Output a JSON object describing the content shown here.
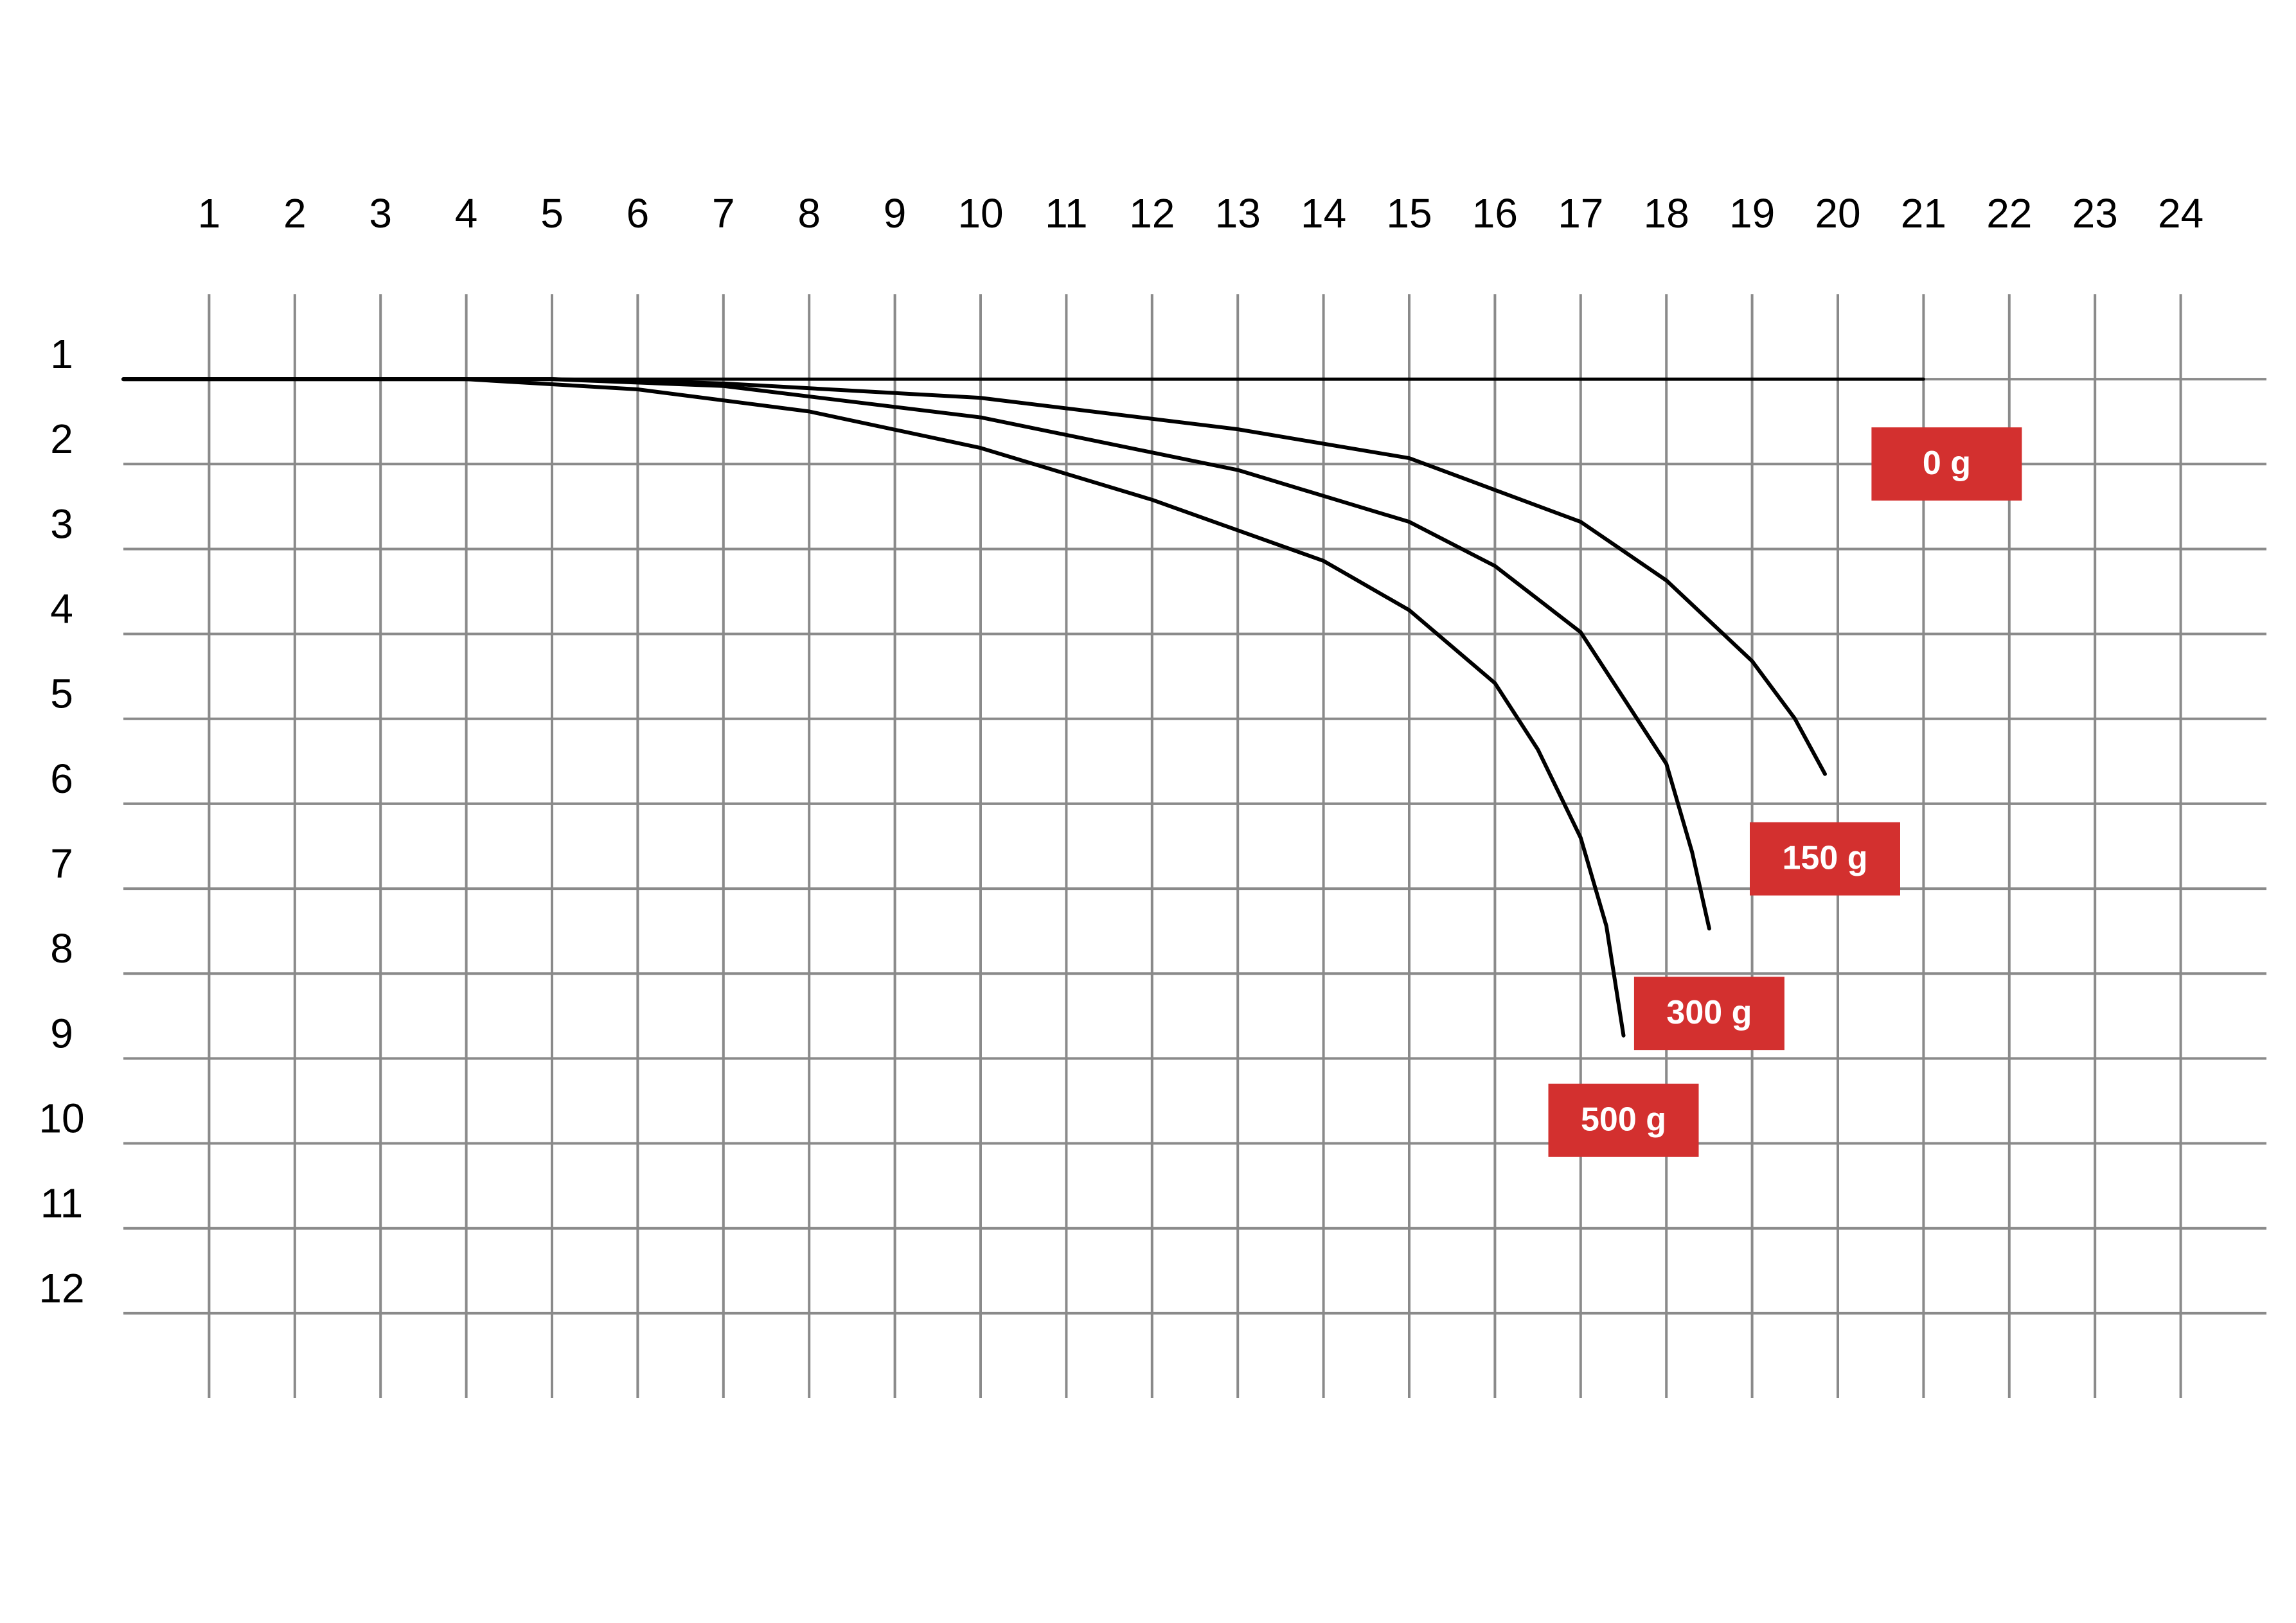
{
  "chart_data": {
    "type": "line",
    "y_inverted": true,
    "grid": true,
    "label_color": "#d3302f",
    "xlim": [
      0,
      25
    ],
    "ylim": [
      0,
      13
    ],
    "xticks": [
      1,
      2,
      3,
      4,
      5,
      6,
      7,
      8,
      9,
      10,
      11,
      12,
      13,
      14,
      15,
      16,
      17,
      18,
      19,
      20,
      21,
      22,
      23,
      24
    ],
    "yticks": [
      1,
      2,
      3,
      4,
      5,
      6,
      7,
      8,
      9,
      10,
      11,
      12
    ],
    "series": [
      {
        "name": "0 g",
        "color": "#000000",
        "x": [
          0,
          5,
          10,
          15,
          21
        ],
        "values": [
          1,
          1,
          1,
          1,
          1
        ]
      },
      {
        "name": "150 g",
        "color": "#000000",
        "x": [
          0,
          5,
          7,
          10,
          13,
          15,
          17,
          18,
          19,
          19.5,
          19.85
        ],
        "values": [
          1,
          1,
          1.05,
          1.22,
          1.59,
          1.93,
          2.68,
          3.37,
          4.32,
          5.0,
          5.65
        ]
      },
      {
        "name": "300 g",
        "color": "#000000",
        "x": [
          0,
          5,
          7,
          10,
          13,
          15,
          16,
          17,
          18,
          18.3,
          18.5
        ],
        "values": [
          1,
          1,
          1.08,
          1.45,
          2.07,
          2.68,
          3.2,
          3.98,
          5.53,
          6.57,
          7.47
        ]
      },
      {
        "name": "500 g",
        "color": "#000000",
        "x": [
          0,
          4,
          6,
          8,
          10,
          12,
          14,
          15,
          16,
          16.5,
          17,
          17.3,
          17.5
        ],
        "values": [
          1,
          1,
          1.12,
          1.38,
          1.81,
          2.42,
          3.14,
          3.72,
          4.58,
          5.36,
          6.4,
          7.44,
          8.73
        ]
      }
    ]
  }
}
